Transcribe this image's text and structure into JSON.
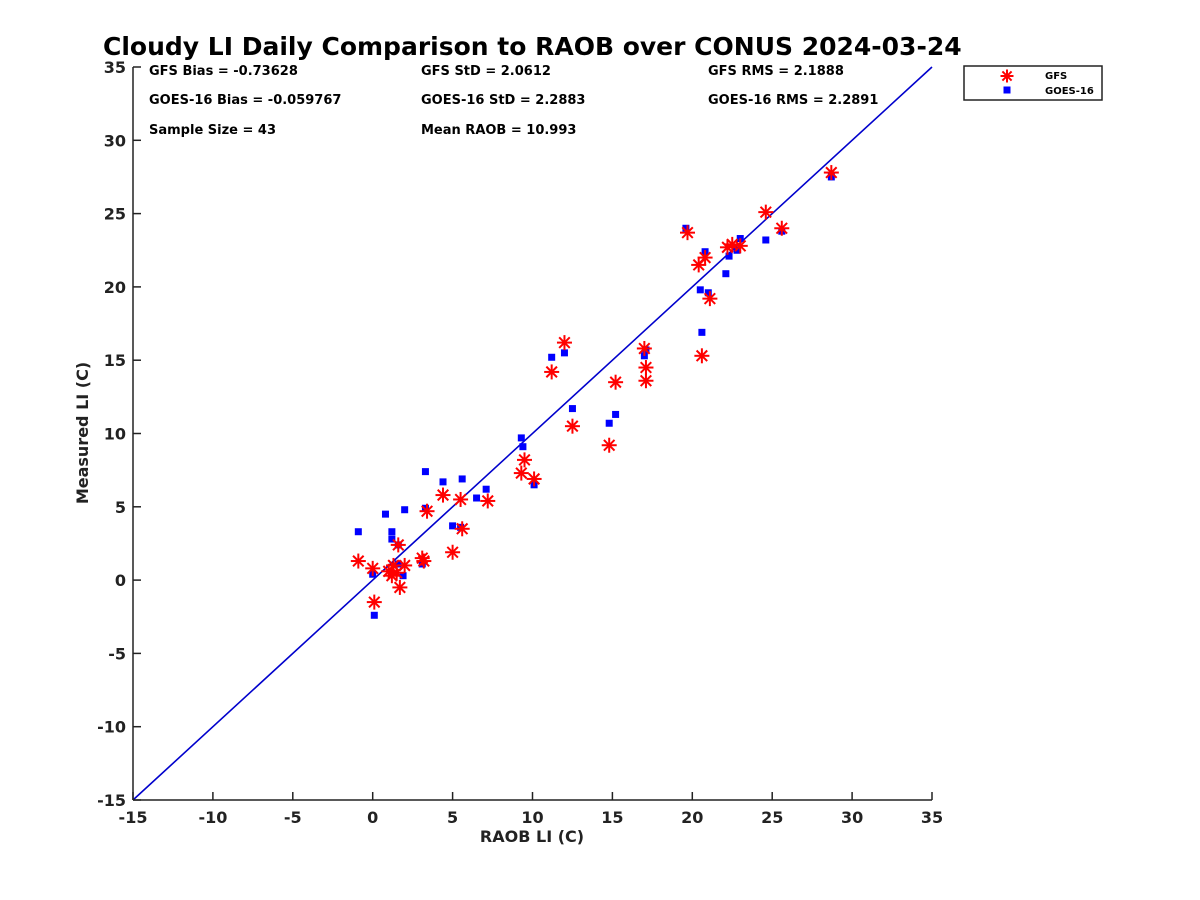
{
  "chart_data": {
    "type": "scatter",
    "title": "Cloudy LI Daily Comparison to RAOB over CONUS 2024-03-24",
    "xlabel": "RAOB LI (C)",
    "ylabel": "Measured LI (C)",
    "xlim": [
      -15,
      35
    ],
    "ylim": [
      -15,
      35
    ],
    "xticks": [
      "-15",
      "-10",
      "-5",
      "0",
      "5",
      "10",
      "15",
      "20",
      "25",
      "30",
      "35"
    ],
    "yticks": [
      "-15",
      "-10",
      "-5",
      "0",
      "5",
      "10",
      "15",
      "20",
      "25",
      "30",
      "35"
    ],
    "grid": false,
    "legend_position": "outside-top-right",
    "reference_line": {
      "from": [
        -15,
        -15
      ],
      "to": [
        35,
        35
      ],
      "color": "#0000cc"
    },
    "stats": [
      [
        "GFS Bias = -0.73628",
        "GFS StD = 2.0612",
        "GFS RMS = 2.1888"
      ],
      [
        "GOES-16 Bias = -0.059767",
        "GOES-16 StD = 2.2883",
        "GOES-16 RMS = 2.2891"
      ],
      [
        "Sample Size = 43",
        "Mean RAOB = 10.993",
        ""
      ]
    ],
    "series": [
      {
        "name": "GFS",
        "marker": "asterisk",
        "color": "#ff0000",
        "x": [
          -0.9,
          0.0,
          0.1,
          1.0,
          1.2,
          1.3,
          1.5,
          1.6,
          1.7,
          2.0,
          3.1,
          3.2,
          3.4,
          4.4,
          5.0,
          5.5,
          5.6,
          7.2,
          9.3,
          9.5,
          10.1,
          11.2,
          12.0,
          12.5,
          14.8,
          15.2,
          17.0,
          17.1,
          17.1,
          19.7,
          20.4,
          20.6,
          20.8,
          21.1,
          22.2,
          22.5,
          23.0,
          24.6,
          25.6,
          28.7
        ],
        "y": [
          1.3,
          0.8,
          -1.5,
          0.6,
          0.3,
          1.0,
          0.5,
          2.4,
          -0.5,
          1.0,
          1.5,
          1.3,
          4.7,
          5.8,
          1.9,
          5.5,
          3.5,
          5.4,
          7.3,
          8.2,
          6.9,
          14.2,
          16.2,
          10.5,
          9.2,
          13.5,
          15.8,
          14.5,
          13.6,
          23.7,
          21.5,
          15.3,
          22.0,
          19.2,
          22.7,
          22.9,
          22.8,
          25.1,
          24.0,
          27.8
        ]
      },
      {
        "name": "GOES-16",
        "marker": "square",
        "color": "#0000ff",
        "x": [
          -0.9,
          0.0,
          0.1,
          0.8,
          1.2,
          1.2,
          1.6,
          1.6,
          1.9,
          2.0,
          3.1,
          3.3,
          3.3,
          4.4,
          5.0,
          5.5,
          5.6,
          6.5,
          7.1,
          9.3,
          9.4,
          10.1,
          11.2,
          12.0,
          12.5,
          14.8,
          15.2,
          17.0,
          17.1,
          19.6,
          20.5,
          20.6,
          20.8,
          21.0,
          22.1,
          22.3,
          22.8,
          23.0,
          24.6,
          25.6,
          28.7
        ],
        "y": [
          3.3,
          0.4,
          -2.4,
          4.5,
          3.3,
          2.8,
          2.4,
          1.1,
          0.3,
          4.8,
          1.1,
          4.9,
          7.4,
          6.7,
          3.7,
          3.6,
          6.9,
          5.6,
          6.2,
          9.7,
          9.1,
          6.5,
          15.2,
          15.5,
          11.7,
          10.7,
          11.3,
          15.3,
          15.7,
          24.0,
          19.8,
          16.9,
          22.4,
          19.6,
          20.9,
          22.1,
          22.5,
          23.3,
          23.2,
          23.8,
          27.5
        ]
      }
    ]
  }
}
